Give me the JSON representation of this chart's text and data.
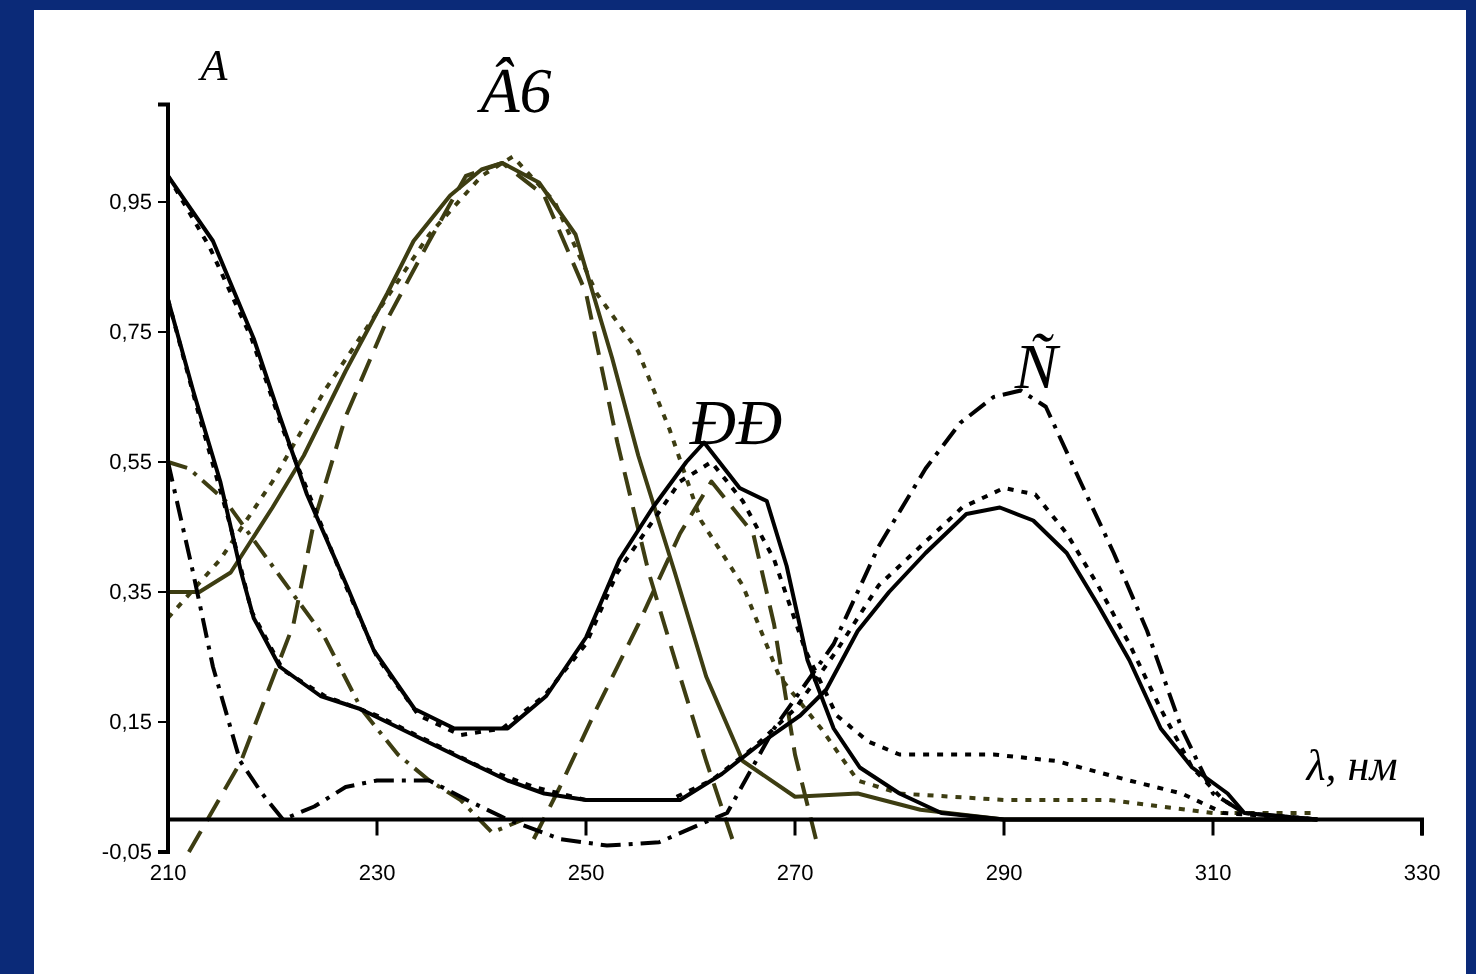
{
  "chart_data": {
    "type": "line",
    "xlabel": "λ, нм",
    "ylabel": "A",
    "annotations": [
      "Â6",
      "ĐĐ",
      "Ñ"
    ],
    "xlim": [
      210,
      330
    ],
    "xticks": [
      210,
      230,
      250,
      270,
      290,
      310,
      330
    ],
    "ylim": [
      -0.05,
      1.1
    ],
    "yticks": [
      {
        "value": -0.05,
        "label": "-0,05"
      },
      {
        "value": 0.15,
        "label": "0,15"
      },
      {
        "value": 0.35,
        "label": "0,35"
      },
      {
        "value": 0.55,
        "label": "0,55"
      },
      {
        "value": 0.75,
        "label": "0,75"
      },
      {
        "value": 0.95,
        "label": "0,95"
      }
    ],
    "grid": false,
    "marker": "none",
    "series": [
      {
        "color": "#3d3d12",
        "line_style": "solid",
        "x": [
          210,
          213,
          216,
          220,
          223,
          227,
          231,
          233.5,
          237,
          240,
          242,
          245.5,
          249,
          252.5,
          255,
          258.5,
          261.5,
          265,
          270,
          276,
          282,
          290,
          320
        ],
        "values": [
          0.35,
          0.35,
          0.38,
          0.48,
          0.56,
          0.69,
          0.81,
          0.89,
          0.96,
          1.0,
          1.01,
          0.98,
          0.9,
          0.71,
          0.56,
          0.38,
          0.22,
          0.09,
          0.035,
          0.04,
          0.015,
          0.0,
          0.0
        ]
      },
      {
        "color": "#3d3d12",
        "line_style": "dashed",
        "x": [
          212,
          217,
          222,
          224,
          227,
          231,
          235,
          238.5,
          242,
          246,
          250,
          253,
          256,
          259,
          261.5,
          264
        ],
        "values": [
          -0.05,
          0.09,
          0.3,
          0.46,
          0.62,
          0.77,
          0.89,
          0.99,
          1.01,
          0.96,
          0.81,
          0.58,
          0.38,
          0.22,
          0.09,
          -0.03
        ]
      },
      {
        "color": "#3d3d12",
        "line_style": "dotted",
        "x": [
          210,
          215,
          220,
          225,
          230,
          235,
          240,
          243,
          247,
          251,
          255,
          258,
          261,
          265,
          268.5,
          272.5,
          276,
          280,
          290,
          300,
          310,
          320
        ],
        "values": [
          0.31,
          0.4,
          0.52,
          0.66,
          0.78,
          0.9,
          0.99,
          1.02,
          0.95,
          0.81,
          0.72,
          0.6,
          0.46,
          0.36,
          0.22,
          0.14,
          0.06,
          0.04,
          0.03,
          0.03,
          0.01,
          0.01
        ]
      },
      {
        "color": "#3d3d12",
        "line_style": "dashdot",
        "x": [
          210,
          212,
          215.5,
          220,
          225,
          228.5,
          232,
          235,
          238,
          241,
          244
        ],
        "values": [
          0.55,
          0.54,
          0.49,
          0.39,
          0.28,
          0.17,
          0.1,
          0.06,
          0.03,
          -0.02,
          0.0
        ]
      },
      {
        "color": "#3d3d12",
        "line_style": "dashed",
        "x": [
          245,
          247.5,
          251,
          255,
          259,
          262,
          264,
          266,
          268,
          270,
          272
        ],
        "values": [
          -0.03,
          0.05,
          0.17,
          0.3,
          0.44,
          0.52,
          0.48,
          0.44,
          0.3,
          0.1,
          -0.03
        ]
      },
      {
        "color": "#000000",
        "line_style": "solid",
        "x": [
          210,
          214.3,
          218.2,
          220.7,
          223.3,
          227.1,
          229.7,
          233.6,
          237.4,
          242.5,
          246.2,
          250,
          253.2,
          256.4,
          259.6,
          261.3,
          264.7,
          267.3,
          269.2,
          271.2,
          273.7,
          276.2,
          280,
          284,
          290,
          320
        ],
        "values": [
          0.99,
          0.89,
          0.74,
          0.62,
          0.5,
          0.36,
          0.26,
          0.17,
          0.14,
          0.14,
          0.19,
          0.28,
          0.4,
          0.48,
          0.55,
          0.58,
          0.51,
          0.49,
          0.39,
          0.245,
          0.14,
          0.08,
          0.04,
          0.01,
          0.0,
          0.0
        ]
      },
      {
        "color": "#000000",
        "line_style": "dotted",
        "x": [
          210,
          214,
          218,
          221,
          224,
          227,
          230,
          234,
          238,
          242,
          246,
          250,
          253,
          256,
          259,
          262,
          265,
          268,
          271,
          274,
          277,
          280,
          289,
          295,
          302,
          307,
          311,
          320
        ],
        "values": [
          0.99,
          0.88,
          0.74,
          0.6,
          0.48,
          0.36,
          0.25,
          0.16,
          0.13,
          0.14,
          0.19,
          0.27,
          0.38,
          0.45,
          0.52,
          0.55,
          0.49,
          0.4,
          0.26,
          0.16,
          0.12,
          0.1,
          0.1,
          0.09,
          0.06,
          0.04,
          0.01,
          0.0
        ]
      },
      {
        "color": "#000000",
        "line_style": "solid",
        "x": [
          210,
          212.4,
          215,
          217,
          218.2,
          220.7,
          224.6,
          228.4,
          233.5,
          238.6,
          242.5,
          246,
          250,
          259,
          263,
          266.7,
          270.5,
          273,
          276,
          279,
          282.5,
          286.4,
          289.6,
          292.8,
          296,
          299,
          302,
          305,
          308,
          311.4,
          313,
          320
        ],
        "values": [
          0.8,
          0.66,
          0.52,
          0.38,
          0.31,
          0.235,
          0.19,
          0.17,
          0.13,
          0.09,
          0.06,
          0.04,
          0.03,
          0.03,
          0.07,
          0.117,
          0.16,
          0.2,
          0.29,
          0.35,
          0.41,
          0.47,
          0.48,
          0.46,
          0.41,
          0.33,
          0.245,
          0.14,
          0.08,
          0.04,
          0.01,
          0.0
        ]
      },
      {
        "color": "#000000",
        "line_style": "dotted",
        "x": [
          210,
          213,
          216,
          218,
          221,
          225,
          230,
          235,
          240,
          245,
          250,
          258,
          262,
          266,
          270,
          274,
          278,
          282,
          286,
          290,
          293,
          296,
          299,
          302,
          305,
          308,
          311,
          313,
          320
        ],
        "values": [
          0.8,
          0.62,
          0.45,
          0.32,
          0.23,
          0.19,
          0.16,
          0.12,
          0.08,
          0.05,
          0.03,
          0.03,
          0.06,
          0.11,
          0.17,
          0.26,
          0.36,
          0.42,
          0.48,
          0.51,
          0.5,
          0.44,
          0.36,
          0.27,
          0.17,
          0.08,
          0.03,
          0.01,
          0.0
        ]
      },
      {
        "color": "#000000",
        "line_style": "dashdot",
        "x": [
          210,
          212.4,
          214.3,
          216.9,
          219,
          221,
          224,
          227,
          230,
          235,
          238.6,
          242.5,
          247.5,
          252,
          257,
          262,
          263.5,
          268,
          273.7,
          278,
          282.5,
          285.8,
          289,
          291.6,
          294,
          297.3,
          300.5,
          303.7,
          307,
          310,
          313,
          320
        ],
        "values": [
          0.55,
          0.38,
          0.235,
          0.09,
          0.04,
          0.0,
          0.02,
          0.05,
          0.06,
          0.06,
          0.03,
          0.0,
          -0.03,
          -0.04,
          -0.035,
          0.0,
          0.01,
          0.14,
          0.27,
          0.42,
          0.54,
          0.61,
          0.65,
          0.66,
          0.635,
          0.52,
          0.41,
          0.29,
          0.14,
          0.04,
          0.01,
          0.0
        ]
      }
    ]
  }
}
